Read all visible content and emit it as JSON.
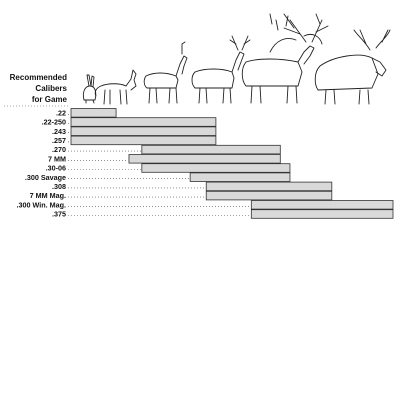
{
  "chart_data": {
    "type": "bar",
    "orientation": "horizontal-range",
    "title_lines": [
      "Recommended",
      "Calibers",
      "for Game"
    ],
    "x_scale": "ordinal: game animals from smallest (left) to largest (right)",
    "game_animals": [
      {
        "name": "rabbit",
        "icon": "rabbit-icon"
      },
      {
        "name": "fox",
        "icon": "fox-icon"
      },
      {
        "name": "pronghorn",
        "icon": "pronghorn-icon"
      },
      {
        "name": "deer",
        "icon": "deer-icon"
      },
      {
        "name": "mule deer",
        "icon": "mule-deer-icon"
      },
      {
        "name": "elk",
        "icon": "elk-icon"
      },
      {
        "name": "moose",
        "icon": "moose-icon"
      }
    ],
    "calibers": [
      {
        "label": ".22",
        "range": [
          0.0,
          0.14
        ]
      },
      {
        "label": ".22-250",
        "range": [
          0.0,
          0.45
        ]
      },
      {
        "label": ".243",
        "range": [
          0.0,
          0.45
        ]
      },
      {
        "label": ".257",
        "range": [
          0.0,
          0.45
        ]
      },
      {
        "label": ".270",
        "range": [
          0.22,
          0.65
        ]
      },
      {
        "label": "7 MM",
        "range": [
          0.18,
          0.65
        ]
      },
      {
        "label": ".30-06",
        "range": [
          0.22,
          0.68
        ]
      },
      {
        "label": ".300 Savage",
        "range": [
          0.37,
          0.68
        ]
      },
      {
        "label": ".308",
        "range": [
          0.42,
          0.81
        ]
      },
      {
        "label": "7 MM Mag.",
        "range": [
          0.42,
          0.81
        ]
      },
      {
        "label": ".300 Win. Mag.",
        "range": [
          0.56,
          1.0
        ]
      },
      {
        "label": ".375",
        "range": [
          0.56,
          1.0
        ]
      }
    ]
  }
}
